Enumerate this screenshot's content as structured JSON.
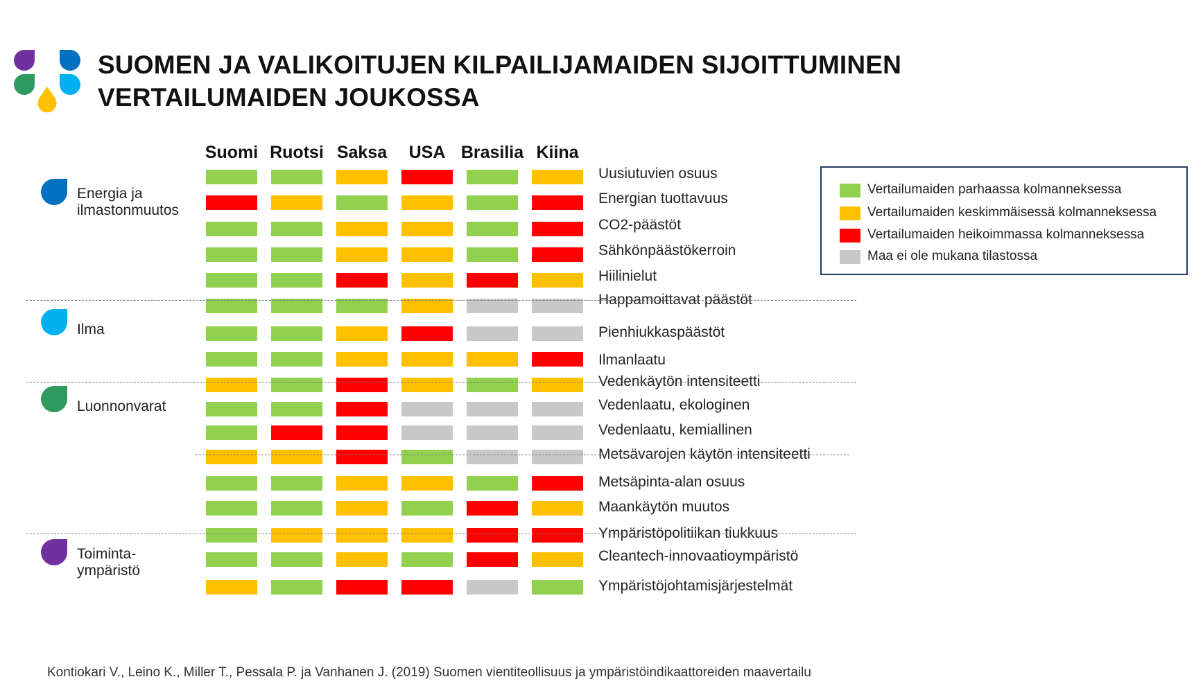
{
  "title_line1": "SUOMEN JA VALIKOITUJEN KILPAILIJAMAIDEN SIJOITTUMINEN",
  "title_line2": "VERTAILUMAIDEN JOUKOSSA",
  "source": "Kontiokari V., Leino K., Miller T., Pessala P. ja Vanhanen J. (2019) Suomen vientiteollisuus ja ympäristöindikaattoreiden maavertailu",
  "logo_colors": [
    "#7030a0",
    "#0070c0",
    "#2e9a5f",
    "#00b0f0",
    "#ffc000"
  ],
  "status_colors": {
    "G": "#92d050",
    "Y": "#ffc000",
    "R": "#ff0000",
    "N": "#c8c8c8"
  },
  "chart_data": {
    "type": "table",
    "columns": [
      "Suomi",
      "Ruotsi",
      "Saksa",
      "USA",
      "Brasilia",
      "Kiina"
    ],
    "legend": [
      {
        "code": "G",
        "label": "Vertailumaiden parhaassa kolmanneksessa"
      },
      {
        "code": "Y",
        "label": "Vertailumaiden keskimmäisessä kolmanneksessa"
      },
      {
        "code": "R",
        "label": "Vertailumaiden heikoimmassa kolmanneksessa"
      },
      {
        "code": "N",
        "label": "Maa ei ole mukana tilastossa"
      }
    ],
    "categories": [
      {
        "label": "Energia ja\nilmastonmuutos",
        "color": "#0070c0",
        "icon": "blue-drop-icon"
      },
      {
        "label": "Ilma",
        "color": "#00b0f0",
        "icon": "light-blue-drop-icon"
      },
      {
        "label": "Luonnonvarat",
        "color": "#2e9a5f",
        "icon": "green-drop-icon"
      },
      {
        "label": "Toiminta-\nympäristö",
        "color": "#7030a0",
        "icon": "purple-drop-icon"
      }
    ],
    "rows": [
      {
        "label": "Uusiutuvien osuus",
        "category": 0,
        "values": [
          "G",
          "G",
          "Y",
          "R",
          "G",
          "Y"
        ]
      },
      {
        "label": "Energian tuottavuus",
        "category": 0,
        "values": [
          "R",
          "Y",
          "G",
          "Y",
          "G",
          "R"
        ]
      },
      {
        "label": "CO2-päästöt",
        "category": 0,
        "values": [
          "G",
          "G",
          "Y",
          "Y",
          "G",
          "R"
        ]
      },
      {
        "label": "Sähkönpäästökerroin",
        "category": 0,
        "values": [
          "G",
          "G",
          "Y",
          "Y",
          "G",
          "R"
        ]
      },
      {
        "label": "Hiilinielut",
        "category": 0,
        "values": [
          "G",
          "G",
          "R",
          "Y",
          "R",
          "Y"
        ]
      },
      {
        "label": "Happamoittavat päästöt",
        "category": 1,
        "values": [
          "G",
          "G",
          "G",
          "Y",
          "N",
          "N"
        ]
      },
      {
        "label": "Pienhiukkaspäästöt",
        "category": 1,
        "values": [
          "G",
          "G",
          "Y",
          "R",
          "N",
          "N"
        ]
      },
      {
        "label": "Ilmanlaatu",
        "category": 1,
        "values": [
          "G",
          "G",
          "Y",
          "Y",
          "Y",
          "R"
        ]
      },
      {
        "label": "Vedenkäytön intensiteetti",
        "category": 2,
        "values": [
          "Y",
          "G",
          "R",
          "Y",
          "G",
          "Y"
        ]
      },
      {
        "label": "Vedenlaatu, ekologinen",
        "category": 2,
        "values": [
          "G",
          "G",
          "R",
          "N",
          "N",
          "N"
        ]
      },
      {
        "label": "Vedenlaatu, kemiallinen",
        "category": 2,
        "values": [
          "G",
          "R",
          "R",
          "N",
          "N",
          "N"
        ]
      },
      {
        "label": "Metsävarojen käytön intensiteetti",
        "category": 2,
        "values": [
          "Y",
          "Y",
          "R",
          "G",
          "N",
          "N"
        ]
      },
      {
        "label": "Metsäpinta-alan osuus",
        "category": 2,
        "values": [
          "G",
          "G",
          "Y",
          "Y",
          "G",
          "R"
        ]
      },
      {
        "label": "Maankäytön muutos",
        "category": 2,
        "values": [
          "G",
          "G",
          "Y",
          "G",
          "R",
          "Y"
        ]
      },
      {
        "label": "Ympäristöpolitiikan tiukkuus",
        "category": 3,
        "values": [
          "G",
          "Y",
          "Y",
          "Y",
          "R",
          "R"
        ]
      },
      {
        "label": "Cleantech-innovaatioympäristö",
        "category": 3,
        "values": [
          "G",
          "G",
          "Y",
          "G",
          "R",
          "Y"
        ]
      },
      {
        "label": "Ympäristöjohtamisjärjestelmät",
        "category": 3,
        "values": [
          "Y",
          "G",
          "R",
          "R",
          "N",
          "G"
        ]
      }
    ]
  }
}
